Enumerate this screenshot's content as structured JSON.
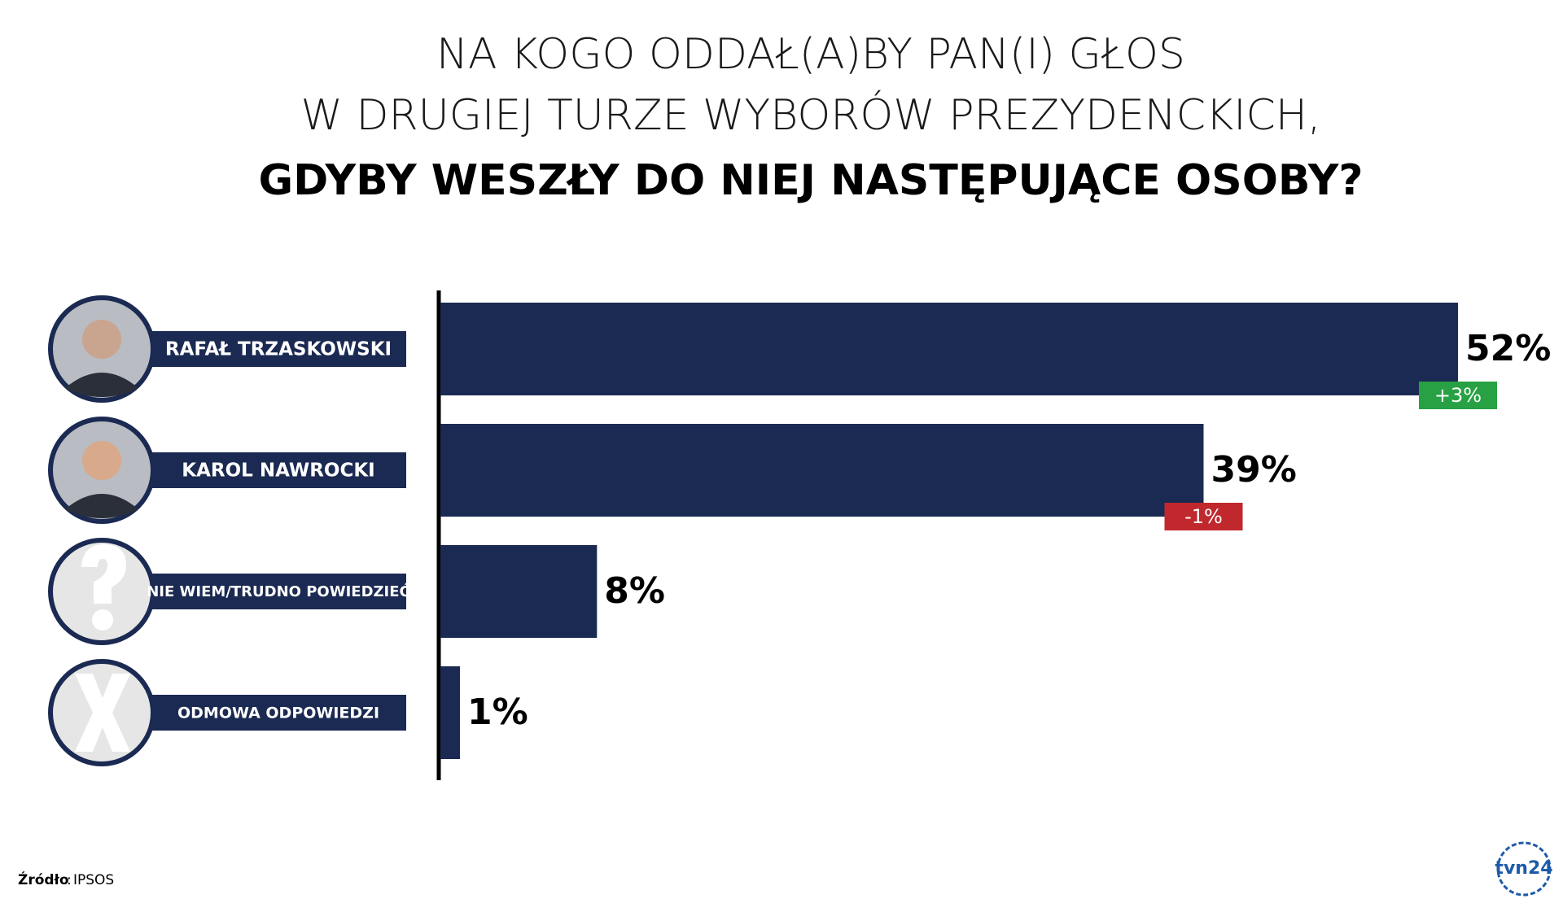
{
  "chart_data": {
    "type": "bar",
    "orientation": "horizontal",
    "title": [
      "NA KOGO ODDAŁ(A)BY PAN(I) GŁOS",
      "W DRUGIEJ TURZE WYBORÓW PREZYDENCKICH,",
      "GDYBY WESZŁY DO NIEJ NASTĘPUJĄCE OSOBY?"
    ],
    "categories": [
      "RAFAŁ TRZASKOWSKI",
      "KAROL NAWROCKI",
      "NIE WIEM/TRUDNO POWIEDZIEĆ",
      "ODMOWA ODPOWIEDZI"
    ],
    "values": [
      52,
      39,
      8,
      1
    ],
    "value_labels": [
      "52%",
      "39%",
      "8%",
      "1%"
    ],
    "changes": [
      3,
      -1,
      null,
      null
    ],
    "change_labels": [
      "+3%",
      "-1%",
      null,
      null
    ],
    "color": "#1b2a52",
    "xlim": [
      0,
      52
    ],
    "source_label": "Źródło",
    "source": "IPSOS",
    "logo": "tvn24"
  }
}
